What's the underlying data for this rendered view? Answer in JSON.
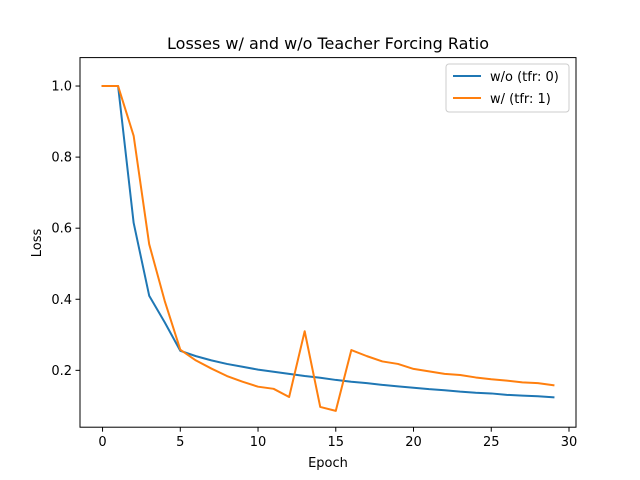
{
  "chart_data": {
    "type": "line",
    "title": "Losses w/ and w/o Teacher Forcing Ratio",
    "xlabel": "Epoch",
    "ylabel": "Loss",
    "xlim": [
      -1.45,
      30.45
    ],
    "ylim": [
      0.04,
      1.08
    ],
    "xticks": [
      0,
      5,
      10,
      15,
      20,
      25,
      30
    ],
    "yticks": [
      0.2,
      0.4,
      0.6,
      0.8,
      1.0
    ],
    "ytick_labels": [
      "0.2",
      "0.4",
      "0.6",
      "0.8",
      "1.0"
    ],
    "grid": false,
    "legend": "top-right",
    "x": [
      0,
      1,
      2,
      3,
      4,
      5,
      6,
      7,
      8,
      9,
      10,
      11,
      12,
      13,
      14,
      15,
      16,
      17,
      18,
      19,
      20,
      21,
      22,
      23,
      24,
      25,
      26,
      27,
      28,
      29
    ],
    "series": [
      {
        "name": "w/o (tfr: 0)",
        "color": "#1f77b4",
        "values": [
          1.0,
          1.0,
          0.615,
          0.41,
          0.335,
          0.255,
          0.24,
          0.228,
          0.218,
          0.21,
          0.202,
          0.196,
          0.19,
          0.184,
          0.179,
          0.173,
          0.168,
          0.164,
          0.159,
          0.155,
          0.151,
          0.147,
          0.144,
          0.14,
          0.137,
          0.135,
          0.131,
          0.129,
          0.127,
          0.124
        ]
      },
      {
        "name": "w/ (tfr: 1)",
        "color": "#ff7f0e",
        "values": [
          1.0,
          1.0,
          0.86,
          0.555,
          0.395,
          0.258,
          0.228,
          0.205,
          0.184,
          0.168,
          0.154,
          0.148,
          0.125,
          0.31,
          0.097,
          0.086,
          0.257,
          0.24,
          0.225,
          0.218,
          0.204,
          0.197,
          0.19,
          0.187,
          0.18,
          0.175,
          0.171,
          0.166,
          0.164,
          0.158
        ]
      }
    ]
  }
}
